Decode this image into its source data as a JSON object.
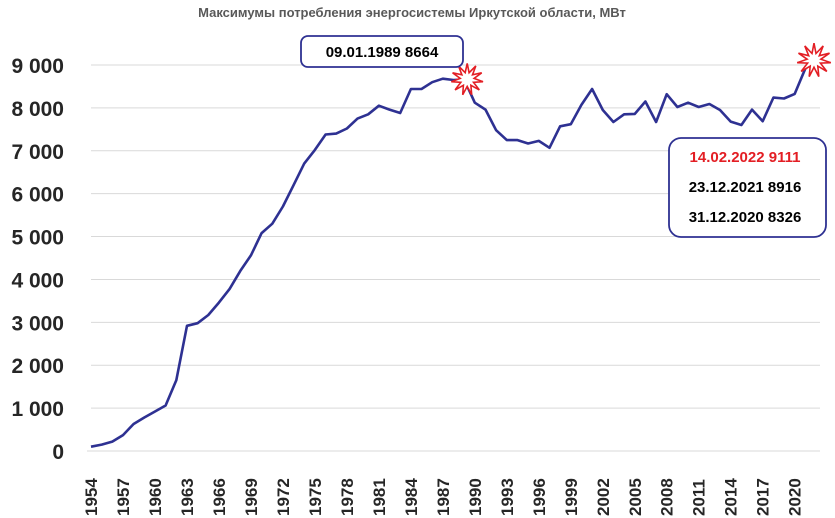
{
  "chart_data": {
    "type": "line",
    "title": "Максимумы потребления энергосистемы Иркутской области, МВт",
    "xlabel": "",
    "ylabel": "",
    "ylim": [
      0,
      9000
    ],
    "grid": true,
    "legend": "none",
    "y_ticks": [
      {
        "value": 0,
        "label": "0"
      },
      {
        "value": 1000,
        "label": "1 000"
      },
      {
        "value": 2000,
        "label": "2 000"
      },
      {
        "value": 3000,
        "label": "3 000"
      },
      {
        "value": 4000,
        "label": "4 000"
      },
      {
        "value": 5000,
        "label": "5 000"
      },
      {
        "value": 6000,
        "label": "6 000"
      },
      {
        "value": 7000,
        "label": "7 000"
      },
      {
        "value": 8000,
        "label": "8 000"
      },
      {
        "value": 9000,
        "label": "9 000"
      }
    ],
    "x_tick_labels": [
      "1954",
      "1957",
      "1960",
      "1963",
      "1966",
      "1969",
      "1972",
      "1975",
      "1978",
      "1981",
      "1984",
      "1987",
      "1990",
      "1993",
      "1996",
      "1999",
      "2002",
      "2005",
      "2008",
      "2011",
      "2014",
      "2017",
      "2020"
    ],
    "line_color": "#2e3192",
    "series": [
      {
        "x": [
          1954,
          1955,
          1956,
          1957,
          1958,
          1959,
          1960,
          1961,
          1962,
          1963,
          1964,
          1965,
          1966,
          1967,
          1968,
          1969,
          1970,
          1971,
          1972,
          1973,
          1974,
          1975,
          1976,
          1977,
          1978,
          1979,
          1980,
          1981,
          1982,
          1983,
          1984,
          1985,
          1986,
          1987,
          1988,
          1989,
          1990,
          1991,
          1992,
          1993,
          1994,
          1995,
          1996,
          1997,
          1998,
          1999,
          2000,
          2001,
          2002,
          2003,
          2004,
          2005,
          2006,
          2007,
          2008,
          2009,
          2010,
          2011,
          2012,
          2013,
          2014,
          2015,
          2016,
          2017,
          2018,
          2019,
          2020,
          2021,
          2022
        ],
        "values": [
          100,
          150,
          220,
          370,
          630,
          780,
          920,
          1060,
          1650,
          2920,
          2980,
          3170,
          3460,
          3780,
          4200,
          4560,
          5080,
          5300,
          5700,
          6200,
          6700,
          7020,
          7380,
          7400,
          7520,
          7750,
          7850,
          8050,
          7960,
          7880,
          8440,
          8440,
          8600,
          8680,
          8650,
          8664,
          8120,
          7960,
          7480,
          7250,
          7250,
          7170,
          7230,
          7070,
          7570,
          7620,
          8070,
          8440,
          7950,
          7670,
          7850,
          7860,
          8150,
          7670,
          8320,
          8020,
          8120,
          8020,
          8090,
          7950,
          7680,
          7600,
          7960,
          7690,
          8240,
          8220,
          8326,
          8916,
          9111
        ]
      }
    ],
    "annotations": [
      {
        "text": "09.01.1989 8664",
        "color": "#000000"
      },
      {
        "text": "14.02.2022 9111",
        "color": "#e31e24"
      },
      {
        "text": "23.12.2021 8916",
        "color": "#000000"
      },
      {
        "text": "31.12.2020 8326",
        "color": "#000000"
      }
    ]
  }
}
